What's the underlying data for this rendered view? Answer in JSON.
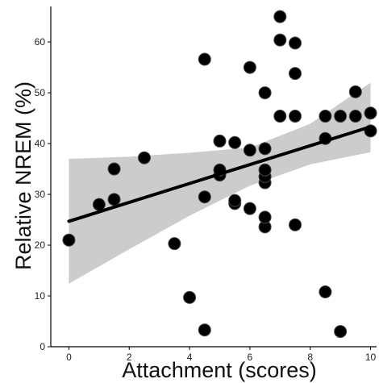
{
  "chart_data": {
    "type": "scatter",
    "title": "",
    "xlabel": "Attachment (scores)",
    "ylabel": "Relative NREM (%)",
    "xlim": [
      -0.6,
      10.2
    ],
    "ylim": [
      0,
      67
    ],
    "xticks": [
      0,
      2,
      4,
      6,
      8,
      10
    ],
    "yticks": [
      0,
      10,
      20,
      30,
      40,
      50,
      60
    ],
    "grid": false,
    "points": [
      {
        "x": 0,
        "y": 21.0
      },
      {
        "x": 1.0,
        "y": 28.0
      },
      {
        "x": 1.5,
        "y": 29.0
      },
      {
        "x": 1.5,
        "y": 35.0
      },
      {
        "x": 2.5,
        "y": 37.2
      },
      {
        "x": 3.5,
        "y": 20.3
      },
      {
        "x": 4.0,
        "y": 9.7
      },
      {
        "x": 4.5,
        "y": 3.3
      },
      {
        "x": 4.5,
        "y": 29.5
      },
      {
        "x": 4.5,
        "y": 56.6
      },
      {
        "x": 5.0,
        "y": 33.8
      },
      {
        "x": 5.0,
        "y": 34.8
      },
      {
        "x": 5.0,
        "y": 40.5
      },
      {
        "x": 5.5,
        "y": 28.2
      },
      {
        "x": 5.5,
        "y": 28.8
      },
      {
        "x": 5.5,
        "y": 40.2
      },
      {
        "x": 6.0,
        "y": 27.2
      },
      {
        "x": 6.0,
        "y": 38.7
      },
      {
        "x": 6.0,
        "y": 55.0
      },
      {
        "x": 6.5,
        "y": 23.6
      },
      {
        "x": 6.5,
        "y": 25.5
      },
      {
        "x": 6.5,
        "y": 32.3
      },
      {
        "x": 6.5,
        "y": 33.5
      },
      {
        "x": 6.5,
        "y": 34.8
      },
      {
        "x": 6.5,
        "y": 39.0
      },
      {
        "x": 6.5,
        "y": 50.0
      },
      {
        "x": 7.0,
        "y": 45.4
      },
      {
        "x": 7.0,
        "y": 60.4
      },
      {
        "x": 7.0,
        "y": 65.0
      },
      {
        "x": 7.5,
        "y": 24.0
      },
      {
        "x": 7.5,
        "y": 45.4
      },
      {
        "x": 7.5,
        "y": 53.8
      },
      {
        "x": 7.5,
        "y": 59.8
      },
      {
        "x": 8.5,
        "y": 10.8
      },
      {
        "x": 8.5,
        "y": 41.0
      },
      {
        "x": 8.5,
        "y": 45.4
      },
      {
        "x": 9.0,
        "y": 3.0
      },
      {
        "x": 9.0,
        "y": 45.4
      },
      {
        "x": 9.5,
        "y": 45.4
      },
      {
        "x": 9.5,
        "y": 50.2
      },
      {
        "x": 10.0,
        "y": 42.5
      },
      {
        "x": 10.0,
        "y": 46.0
      }
    ],
    "regression_line": {
      "x": [
        0,
        10
      ],
      "y": [
        24.7,
        43.3
      ]
    },
    "confidence_band": {
      "x": [
        0,
        2,
        4,
        6,
        8,
        10
      ],
      "lower": [
        12.4,
        19.2,
        25.8,
        31.7,
        35.9,
        38.3
      ],
      "upper": [
        37.0,
        37.4,
        38.2,
        39.2,
        43.9,
        52.0
      ]
    },
    "colors": {
      "point": "#000000",
      "point_outline": "#444444",
      "line": "#000000",
      "band": "#cccccc"
    }
  }
}
